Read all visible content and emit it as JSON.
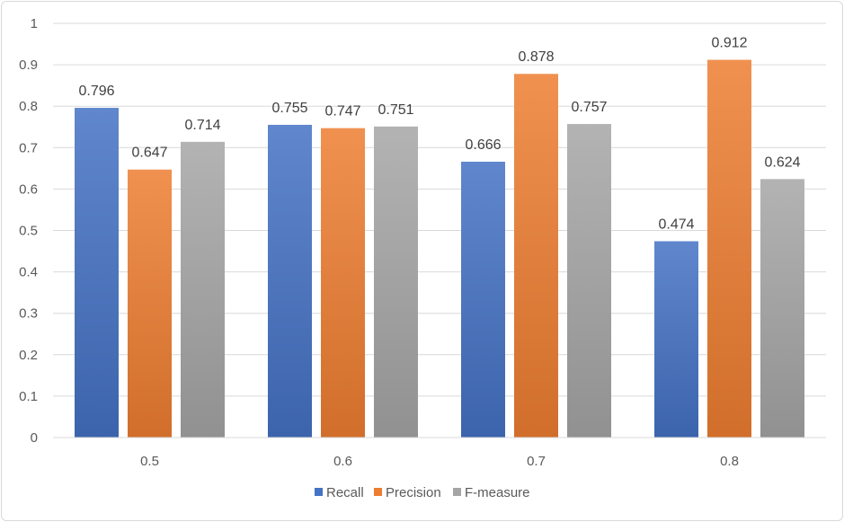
{
  "chart_data": {
    "type": "bar",
    "categories": [
      "0.5",
      "0.6",
      "0.7",
      "0.8"
    ],
    "series": [
      {
        "name": "Recall",
        "values": [
          0.796,
          0.755,
          0.666,
          0.474
        ],
        "color": "#4472c4"
      },
      {
        "name": "Precision",
        "values": [
          0.647,
          0.747,
          0.878,
          0.912
        ],
        "color": "#ed7d31"
      },
      {
        "name": "F-measure",
        "values": [
          0.714,
          0.751,
          0.757,
          0.624
        ],
        "color": "#a5a5a5"
      }
    ],
    "data_labels": [
      [
        "0.796",
        "0.647",
        "0.714"
      ],
      [
        "0.755",
        "0.747",
        "0.751"
      ],
      [
        "0.666",
        "0.878",
        "0.757"
      ],
      [
        "0.474",
        "0.912",
        "0.624"
      ]
    ],
    "y_ticks": [
      "0",
      "0.1",
      "0.2",
      "0.3",
      "0.4",
      "0.5",
      "0.6",
      "0.7",
      "0.8",
      "0.9",
      "1"
    ],
    "ylim": [
      0,
      1
    ],
    "grid": true,
    "legend_position": "bottom",
    "title": "",
    "xlabel": "",
    "ylabel": ""
  }
}
